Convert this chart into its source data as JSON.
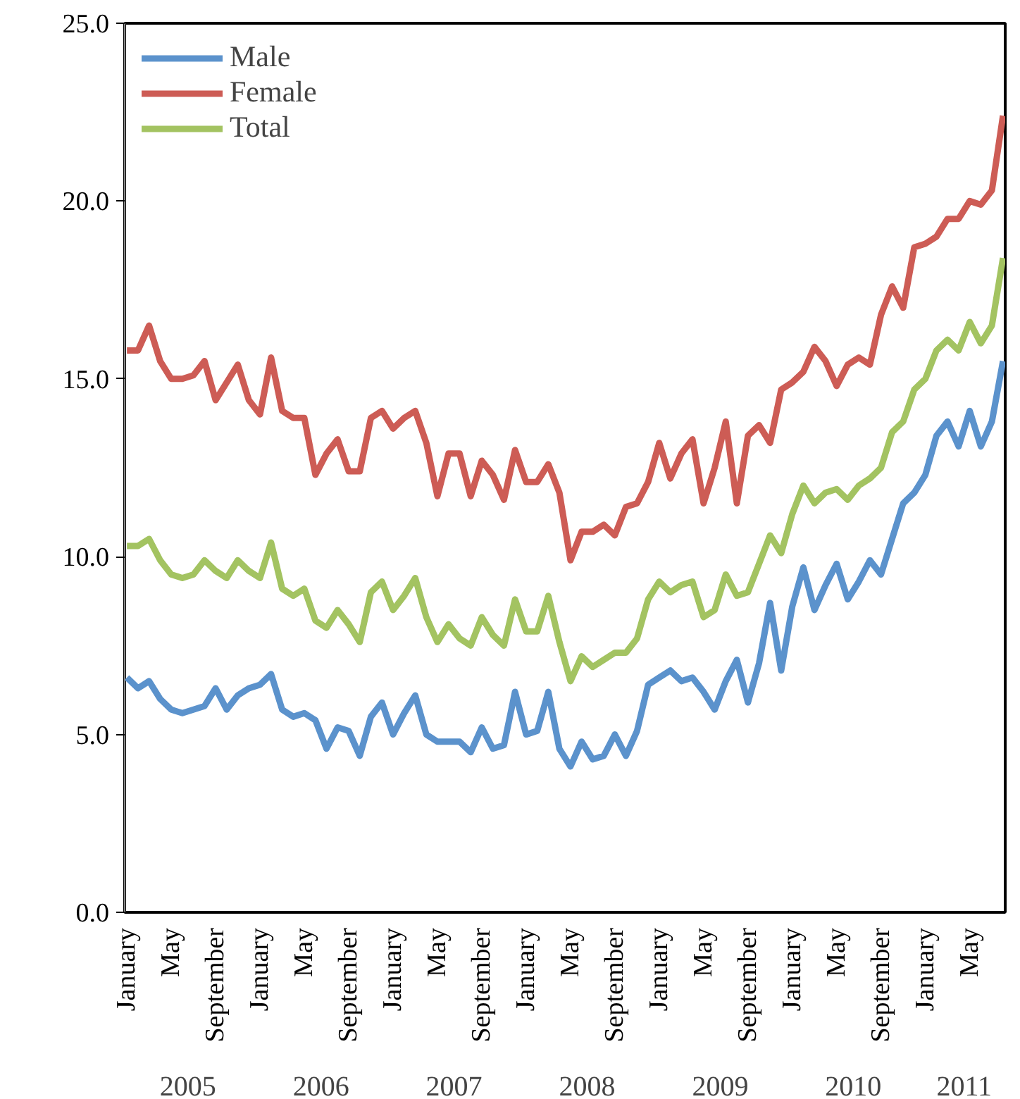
{
  "chart_data": {
    "type": "line",
    "categories": [
      "January",
      null,
      null,
      null,
      "May",
      null,
      null,
      null,
      "September",
      null,
      null,
      null,
      "January",
      null,
      null,
      null,
      "May",
      null,
      null,
      null,
      "September",
      null,
      null,
      null,
      "January",
      null,
      null,
      null,
      "May",
      null,
      null,
      null,
      "September",
      null,
      null,
      null,
      "January",
      null,
      null,
      null,
      "May",
      null,
      null,
      null,
      "September",
      null,
      null,
      null,
      "January",
      null,
      null,
      null,
      "May",
      null,
      null,
      null,
      "September",
      null,
      null,
      null,
      "January",
      null,
      null,
      null,
      "May",
      null,
      null,
      null,
      "September",
      null,
      null,
      null,
      "January",
      null,
      null,
      null,
      "May",
      null,
      null,
      null
    ],
    "series": [
      {
        "name": "Male",
        "color": "#5b92cc",
        "values": [
          6.6,
          6.3,
          6.5,
          6.0,
          5.7,
          5.6,
          5.7,
          5.8,
          6.3,
          5.7,
          6.1,
          6.3,
          6.4,
          6.7,
          5.7,
          5.5,
          5.6,
          5.4,
          4.6,
          5.2,
          5.1,
          4.4,
          5.5,
          5.9,
          5.0,
          5.6,
          6.1,
          5.0,
          4.8,
          4.8,
          4.8,
          4.5,
          5.2,
          4.6,
          4.7,
          6.2,
          5.0,
          5.1,
          6.2,
          4.6,
          4.1,
          4.8,
          4.3,
          4.4,
          5.0,
          4.4,
          5.1,
          6.4,
          6.6,
          6.8,
          6.5,
          6.6,
          6.2,
          5.7,
          6.5,
          7.1,
          5.9,
          7.0,
          8.7,
          6.8,
          8.6,
          9.7,
          8.5,
          9.2,
          9.8,
          8.8,
          9.3,
          9.9,
          9.5,
          10.5,
          11.5,
          11.8,
          12.3,
          13.4,
          13.8,
          13.1,
          14.1,
          13.1,
          13.8,
          15.5
        ]
      },
      {
        "name": "Female",
        "color": "#cd5c55",
        "values": [
          15.8,
          15.8,
          16.5,
          15.5,
          15.0,
          15.0,
          15.1,
          15.5,
          14.4,
          14.9,
          15.4,
          14.4,
          14.0,
          15.6,
          14.1,
          13.9,
          13.9,
          12.3,
          12.9,
          13.3,
          12.4,
          12.4,
          13.9,
          14.1,
          13.6,
          13.9,
          14.1,
          13.2,
          11.7,
          12.9,
          12.9,
          11.7,
          12.7,
          12.3,
          11.6,
          13.0,
          12.1,
          12.1,
          12.6,
          11.8,
          9.9,
          10.7,
          10.7,
          10.9,
          10.6,
          11.4,
          11.5,
          12.1,
          13.2,
          12.2,
          12.9,
          13.3,
          11.5,
          12.5,
          13.8,
          11.5,
          13.4,
          13.7,
          13.2,
          14.7,
          14.9,
          15.2,
          15.9,
          15.5,
          14.8,
          15.4,
          15.6,
          15.4,
          16.8,
          17.6,
          17.0,
          18.7,
          18.8,
          19.0,
          19.5,
          19.5,
          20.0,
          19.9,
          20.3,
          22.4
        ]
      },
      {
        "name": "Total",
        "color": "#a3c361",
        "values": [
          10.3,
          10.3,
          10.5,
          9.9,
          9.5,
          9.4,
          9.5,
          9.9,
          9.6,
          9.4,
          9.9,
          9.6,
          9.4,
          10.4,
          9.1,
          8.9,
          9.1,
          8.2,
          8.0,
          8.5,
          8.1,
          7.6,
          9.0,
          9.3,
          8.5,
          8.9,
          9.4,
          8.3,
          7.6,
          8.1,
          7.7,
          7.5,
          8.3,
          7.8,
          7.5,
          8.8,
          7.9,
          7.9,
          8.9,
          7.6,
          6.5,
          7.2,
          6.9,
          7.1,
          7.3,
          7.3,
          7.7,
          8.8,
          9.3,
          9.0,
          9.2,
          9.3,
          8.3,
          8.5,
          9.5,
          8.9,
          9.0,
          9.8,
          10.6,
          10.1,
          11.2,
          12.0,
          11.5,
          11.8,
          11.9,
          11.6,
          12.0,
          12.2,
          12.5,
          13.5,
          13.8,
          14.7,
          15.0,
          15.8,
          16.1,
          15.8,
          16.6,
          16.0,
          16.5,
          18.4
        ]
      }
    ],
    "annotations": [
      "2005",
      "2006",
      "2007",
      "2008",
      "2009",
      "2010",
      "2011"
    ],
    "ylim": [
      0,
      25
    ],
    "yticks": [
      {
        "value": 0,
        "label": "0.0"
      },
      {
        "value": 5,
        "label": "5.0"
      },
      {
        "value": 10,
        "label": "10.0"
      },
      {
        "value": 15,
        "label": "15.0"
      },
      {
        "value": 20,
        "label": "20.0"
      },
      {
        "value": 25,
        "label": "25.0"
      }
    ],
    "grid": false,
    "legend": "top left",
    "marker": "none",
    "line_style": "solid"
  }
}
